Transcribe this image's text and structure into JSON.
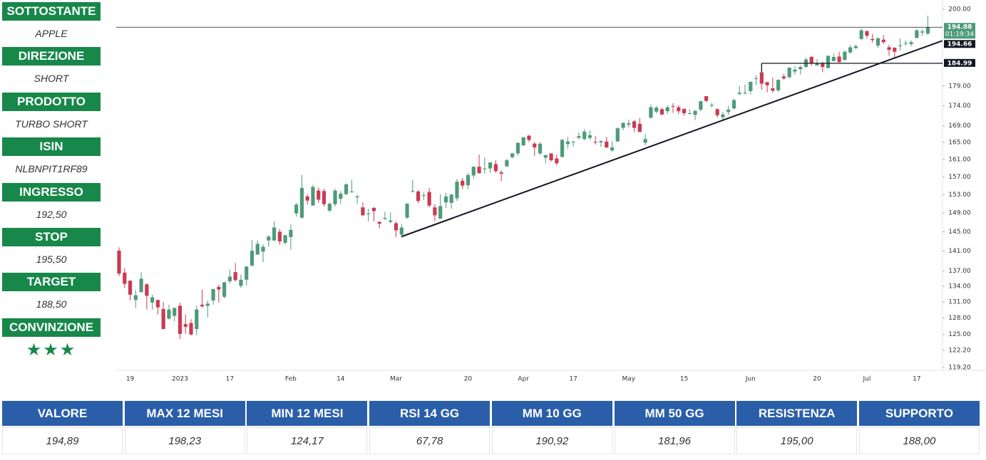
{
  "panel": {
    "rows": [
      {
        "label": "SOTTOSTANTE",
        "value": "APPLE"
      },
      {
        "label": "DIREZIONE",
        "value": "SHORT"
      },
      {
        "label": "PRODOTTO",
        "value": "TURBO SHORT"
      },
      {
        "label": "ISIN",
        "value": "NLBNPIT1RF89"
      },
      {
        "label": "INGRESSO",
        "value": "192,50"
      },
      {
        "label": "STOP",
        "value": "195,50"
      },
      {
        "label": "TARGET",
        "value": "188,50"
      },
      {
        "label": "CONVINZIONE",
        "value": "★★★"
      }
    ]
  },
  "chart_data": {
    "type": "candlestick",
    "log": true,
    "up_color": "#4e9a7a",
    "down_color": "#c93a52",
    "categories": [
      null,
      null,
      "19",
      null,
      null,
      null,
      null,
      null,
      null,
      null,
      null,
      "2023",
      null,
      null,
      null,
      null,
      null,
      null,
      null,
      null,
      "17",
      null,
      null,
      null,
      null,
      null,
      null,
      null,
      null,
      null,
      null,
      "Feb",
      null,
      null,
      null,
      null,
      null,
      null,
      null,
      null,
      "14",
      null,
      null,
      null,
      null,
      null,
      null,
      null,
      null,
      null,
      "Mar",
      null,
      null,
      null,
      null,
      null,
      null,
      null,
      null,
      null,
      null,
      null,
      null,
      "20",
      null,
      null,
      null,
      null,
      null,
      null,
      null,
      null,
      null,
      "Apr",
      null,
      null,
      null,
      null,
      null,
      null,
      null,
      null,
      "17",
      null,
      null,
      null,
      null,
      null,
      null,
      null,
      null,
      null,
      "May",
      null,
      null,
      null,
      null,
      null,
      null,
      null,
      null,
      null,
      "15",
      null,
      null,
      null,
      null,
      null,
      null,
      null,
      null,
      null,
      null,
      null,
      "Jun",
      null,
      null,
      null,
      null,
      null,
      null,
      null,
      null,
      null,
      null,
      null,
      "20",
      null,
      null,
      null,
      null,
      null,
      null,
      null,
      null,
      "Jul",
      null,
      null,
      null,
      null,
      null,
      null,
      null,
      null,
      "17",
      null,
      null
    ],
    "open": [
      141.1,
      136.7,
      135.1,
      131.4,
      132.9,
      134.4,
      130.9,
      131.4,
      129.7,
      127.9,
      128.4,
      130.3,
      126.9,
      127.1,
      126.0,
      130.5,
      130.3,
      131.3,
      133.9,
      132.0,
      135.0,
      136.8,
      134.1,
      135.3,
      138.1,
      140.3,
      140.9,
      143.2,
      143.2,
      145.0,
      142.7,
      143.9,
      148.9,
      148.0,
      152.6,
      150.6,
      153.9,
      153.8,
      149.5,
      150.9,
      152.1,
      153.1,
      153.5,
      152.4,
      150.2,
      148.9,
      150.1,
      147.1,
      147.7,
      147.1,
      146.8,
      144.4,
      148.0,
      153.8,
      153.7,
      152.8,
      153.6,
      150.2,
      147.8,
      151.3,
      151.2,
      152.2,
      156.1,
      155.1,
      157.3,
      159.3,
      158.8,
      158.9,
      159.9,
      158.0,
      159.4,
      161.5,
      162.4,
      164.3,
      166.6,
      164.7,
      162.4,
      161.4,
      162.4,
      161.2,
      161.6,
      164.6,
      165.1,
      166.1,
      165.8,
      166.1,
      165.1,
      165.0,
      165.2,
      163.1,
      165.2,
      168.5,
      169.3,
      170.1,
      169.5,
      164.9,
      171.0,
      172.5,
      173.1,
      172.6,
      173.9,
      173.6,
      173.2,
      172.0,
      171.7,
      173.0,
      176.4,
      174.0,
      173.1,
      171.1,
      172.4,
      173.3,
      177.0,
      177.3,
      177.7,
      181.0,
      182.6,
      180.0,
      178.4,
      177.9,
      181.5,
      181.3,
      182.8,
      183.4,
      184.0,
      186.7,
      184.4,
      184.9,
      183.7,
      185.6,
      186.8,
      185.9,
      187.9,
      189.1,
      191.6,
      193.8,
      191.6,
      189.8,
      191.4,
      189.3,
      189.2,
      189.7,
      190.5,
      190.2,
      191.9,
      193.4,
      193.1
    ],
    "high": [
      141.8,
      137.6,
      135.2,
      133.3,
      136.8,
      134.6,
      132.4,
      131.4,
      131.0,
      130.5,
      129.9,
      130.9,
      128.7,
      127.8,
      130.3,
      133.4,
      131.3,
      133.5,
      134.3,
      134.9,
      137.3,
      138.6,
      136.3,
      138.0,
      143.3,
      143.2,
      142.4,
      144.3,
      147.2,
      145.6,
      144.3,
      146.6,
      151.2,
      157.4,
      153.1,
      155.2,
      154.6,
      154.3,
      151.3,
      154.3,
      153.8,
      155.5,
      156.3,
      153.0,
      151.3,
      149.9,
      150.3,
      147.2,
      149.2,
      149.1,
      147.2,
      146.7,
      151.1,
      156.3,
      154.0,
      153.5,
      154.5,
      150.9,
      153.1,
      153.4,
      153.2,
      156.5,
      156.7,
      157.8,
      159.4,
      162.1,
      161.5,
      160.3,
      160.8,
      158.5,
      161.1,
      162.5,
      165.0,
      166.3,
      166.8,
      165.1,
      165.0,
      162.0,
      162.4,
      162.1,
      165.8,
      166.3,
      165.4,
      167.4,
      168.2,
      167.9,
      166.5,
      165.6,
      166.3,
      165.3,
      168.6,
      169.9,
      170.5,
      170.4,
      170.9,
      167.0,
      174.3,
      173.9,
      173.5,
      174.0,
      174.6,
      174.1,
      173.2,
      173.1,
      172.9,
      175.2,
      176.4,
      174.7,
      173.4,
      172.4,
      173.9,
      175.8,
      179.0,
      179.4,
      180.1,
      181.8,
      185.0,
      180.1,
      181.2,
      180.8,
      182.2,
      183.9,
      184.2,
      184.4,
      186.5,
      187.0,
      186.1,
      185.4,
      187.0,
      187.6,
      188.1,
      188.4,
      189.9,
      190.1,
      194.5,
      193.9,
      193.0,
      192.0,
      192.7,
      190.0,
      189.3,
      191.7,
      191.2,
      191.2,
      194.3,
      194.3,
      198.2
    ],
    "low": [
      136.0,
      133.7,
      131.3,
      129.9,
      132.8,
      129.6,
      129.6,
      128.7,
      125.9,
      127.7,
      127.4,
      124.2,
      125.1,
      124.8,
      124.9,
      129.9,
      128.1,
      130.5,
      130.9,
      131.7,
      134.6,
      135.0,
      133.7,
      134.2,
      137.9,
      140.3,
      138.8,
      141.9,
      143.1,
      142.3,
      142.3,
      141.3,
      148.2,
      147.8,
      150.8,
      150.6,
      151.2,
      150.4,
      149.2,
      150.4,
      150.9,
      152.9,
      153.5,
      151.0,
      148.4,
      147.2,
      147.2,
      145.7,
      147.5,
      146.8,
      143.9,
      143.8,
      147.7,
      153.5,
      151.1,
      151.8,
      150.2,
      147.2,
      147.7,
      150.1,
      149.9,
      151.6,
      154.2,
      154.2,
      156.5,
      157.8,
      157.7,
      157.9,
      157.9,
      156.0,
      159.2,
      161.3,
      161.9,
      164.2,
      165.1,
      161.8,
      162.0,
      160.1,
      160.5,
      159.6,
      161.4,
      163.5,
      164.0,
      165.7,
      165.5,
      165.6,
      164.5,
      163.9,
      163.7,
      162.8,
      165.2,
      167.9,
      168.6,
      167.5,
      167.5,
      164.3,
      170.8,
      172.1,
      171.6,
      171.9,
      172.2,
      171.9,
      171.5,
      171.8,
      170.4,
      172.6,
      174.9,
      173.5,
      171.0,
      170.5,
      171.7,
      173.1,
      176.6,
      176.8,
      176.9,
      179.3,
      178.0,
      177.4,
      177.3,
      177.5,
      180.6,
      181.0,
      182.0,
      182.0,
      183.8,
      184.3,
      184.4,
      182.6,
      183.7,
      185.5,
      185.2,
      185.7,
      187.6,
      188.9,
      191.3,
      191.8,
      190.6,
      189.2,
      190.2,
      187.0,
      186.6,
      188.5,
      189.8,
      189.6,
      191.8,
      192.4,
      192.7
    ],
    "close": [
      136.5,
      134.5,
      132.4,
      132.3,
      135.5,
      132.2,
      131.9,
      130.0,
      126.0,
      129.6,
      129.9,
      125.1,
      126.4,
      125.0,
      129.6,
      130.2,
      130.7,
      133.5,
      133.4,
      134.8,
      135.9,
      135.2,
      135.3,
      137.9,
      141.1,
      142.5,
      141.9,
      144.0,
      145.9,
      143.0,
      144.3,
      145.4,
      150.8,
      154.5,
      151.7,
      154.7,
      151.9,
      150.9,
      151.0,
      153.9,
      153.2,
      155.3,
      153.7,
      152.6,
      148.5,
      148.9,
      149.4,
      146.7,
      147.9,
      147.4,
      145.3,
      145.9,
      151.0,
      153.8,
      151.6,
      152.9,
      150.6,
      148.5,
      150.5,
      152.6,
      153.0,
      155.9,
      155.0,
      157.4,
      159.3,
      157.8,
      158.9,
      160.3,
      158.3,
      157.7,
      160.8,
      162.4,
      164.9,
      166.2,
      165.6,
      163.8,
      164.7,
      162.0,
      160.8,
      160.1,
      165.6,
      165.2,
      165.2,
      166.5,
      167.6,
      166.7,
      165.0,
      165.3,
      163.8,
      163.8,
      168.4,
      169.7,
      169.6,
      168.5,
      167.5,
      165.8,
      173.6,
      173.5,
      171.8,
      173.6,
      173.8,
      172.6,
      172.1,
      172.1,
      172.7,
      175.1,
      175.2,
      174.2,
      171.6,
      171.8,
      173.0,
      175.4,
      177.3,
      177.3,
      180.1,
      181.0,
      179.6,
      179.2,
      177.8,
      180.6,
      181.0,
      183.8,
      183.3,
      184.0,
      186.0,
      184.9,
      185.0,
      184.0,
      187.0,
      186.7,
      185.3,
      188.1,
      189.3,
      189.6,
      194.0,
      192.5,
      191.3,
      191.8,
      190.7,
      188.6,
      188.1,
      189.8,
      190.5,
      190.7,
      194.0,
      193.7,
      194.88
    ],
    "ylim": [
      118.7,
      202.7
    ],
    "yticks": [
      {
        "value": 200,
        "label": "200.00"
      },
      {
        "value": 179,
        "label": "179.00"
      },
      {
        "value": 174,
        "label": "174.00"
      },
      {
        "value": 169,
        "label": "169.00"
      },
      {
        "value": 165,
        "label": "165.00"
      },
      {
        "value": 161,
        "label": "161.00"
      },
      {
        "value": 157,
        "label": "157.00"
      },
      {
        "value": 153,
        "label": "153.00"
      },
      {
        "value": 149,
        "label": "149.00"
      },
      {
        "value": 145,
        "label": "145.00"
      },
      {
        "value": 141,
        "label": "141.00"
      },
      {
        "value": 137,
        "label": "137.00"
      },
      {
        "value": 134,
        "label": "134.00"
      },
      {
        "value": 131,
        "label": "131.00"
      },
      {
        "value": 128,
        "label": "128.00"
      },
      {
        "value": 125,
        "label": "125.00"
      },
      {
        "value": 122.2,
        "label": "122.20"
      },
      {
        "value": 119.2,
        "label": "119.20"
      }
    ],
    "price_lines": [
      {
        "value": 194.88,
        "from": 0
      },
      {
        "value": 184.99,
        "from": 116
      }
    ],
    "trend_line": {
      "x": [
        51,
        148.6
      ],
      "y": [
        144.0,
        191.1
      ]
    },
    "price_labels": [
      {
        "value": 194.88,
        "label": "194.88",
        "sub": "01:19:34",
        "color": "#4e9a7a"
      },
      {
        "value": 194.66,
        "label": "194.66",
        "color": "#131722"
      },
      {
        "value": 184.99,
        "label": "184.99",
        "color": "#131722"
      }
    ]
  },
  "table": {
    "headers": [
      "VALORE",
      "MAX 12 MESI",
      "MIN 12 MESI",
      "RSI 14 GG",
      "MM 10 GG",
      "MM 50 GG",
      "RESISTENZA",
      "SUPPORTO"
    ],
    "rows": [
      [
        "194,89",
        "198,23",
        "124,17",
        "67,78",
        "190,92",
        "181,96",
        "195,00",
        "188,00"
      ]
    ]
  }
}
